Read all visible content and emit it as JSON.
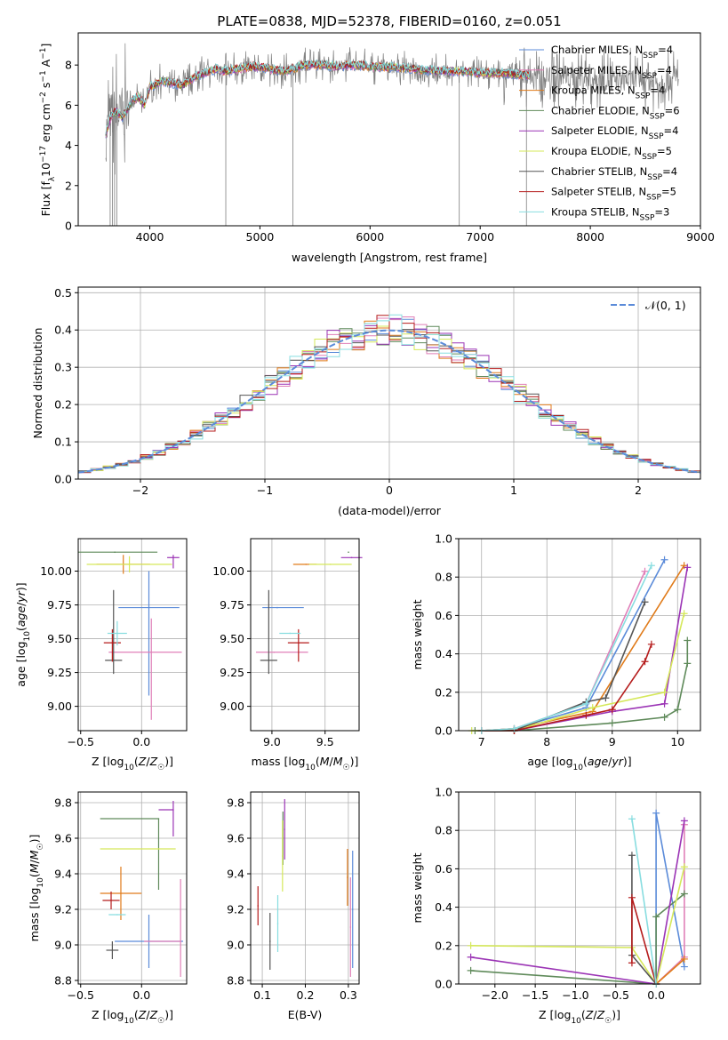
{
  "figure": {
    "title": "PLATE=0838, MJD=52378, FIBERID=0160, z=0.051"
  },
  "colors": {
    "Chabrier MILES": "#5b8bd9",
    "Salpeter MILES": "#e07fb8",
    "Kroupa MILES": "#e07b1a",
    "Chabrier ELODIE": "#5f8a5a",
    "Salpeter ELODIE": "#9b34b5",
    "Kroupa ELODIE": "#d5e85a",
    "Chabrier STELIB": "#555555",
    "Salpeter STELIB": "#b51c1c",
    "Kroupa STELIB": "#88dde0",
    "data": "#7f7f7f",
    "gaussian": "#5b8bd9"
  },
  "chart_data": [
    {
      "id": "spectrum",
      "type": "line",
      "title": "PLATE=0838, MJD=52378, FIBERID=0160, z=0.051",
      "xlabel": "wavelength [Angstrom, rest frame]",
      "ylabel": "Flux [f_λ 10^-17 erg cm^-2 s^-1 A^-1]",
      "xlim": [
        3350,
        9000
      ],
      "ylim": [
        0,
        9.6
      ],
      "xticks": [
        "4000",
        "5000",
        "6000",
        "7000",
        "8000",
        "9000"
      ],
      "yticks": [
        "0",
        "2",
        "4",
        "6",
        "8"
      ],
      "legend_position": "right",
      "legend": [
        {
          "label": "Chabrier MILES, N",
          "sub": "SSP",
          "tail": "=4"
        },
        {
          "label": "Salpeter MILES, N",
          "sub": "SSP",
          "tail": "=4"
        },
        {
          "label": "Kroupa MILES, N",
          "sub": "SSP",
          "tail": "=4"
        },
        {
          "label": "Chabrier ELODIE, N",
          "sub": "SSP",
          "tail": "=6"
        },
        {
          "label": "Salpeter ELODIE, N",
          "sub": "SSP",
          "tail": "=4"
        },
        {
          "label": "Kroupa ELODIE, N",
          "sub": "SSP",
          "tail": "=5"
        },
        {
          "label": "Chabrier STELIB, N",
          "sub": "SSP",
          "tail": "=4"
        },
        {
          "label": "Salpeter STELIB, N",
          "sub": "SSP",
          "tail": "=5"
        },
        {
          "label": "Kroupa STELIB, N",
          "sub": "SSP",
          "tail": "=3"
        }
      ],
      "continuum": {
        "x": [
          3600,
          3650,
          3700,
          3750,
          3800,
          3850,
          3900,
          3950,
          4000,
          4100,
          4200,
          4300,
          4400,
          4500,
          4600,
          4700,
          4800,
          4900,
          5000,
          5100,
          5200,
          5300,
          5400,
          5500,
          5600,
          5700,
          5800,
          5900,
          6000,
          6200,
          6400,
          6600,
          6800,
          7000,
          7200,
          7400,
          7600,
          7800,
          8000,
          8200,
          8400,
          8600,
          8800
        ],
        "y": [
          4.6,
          5.5,
          5.7,
          5.4,
          5.8,
          6.3,
          6.4,
          6.0,
          6.9,
          7.2,
          7.1,
          7.0,
          7.4,
          7.6,
          7.8,
          7.7,
          7.8,
          7.9,
          7.9,
          7.8,
          7.7,
          7.8,
          8.0,
          8.0,
          8.0,
          7.9,
          8.0,
          8.0,
          7.9,
          7.9,
          7.8,
          7.7,
          7.7,
          7.6,
          7.6,
          7.5,
          7.4,
          7.4,
          7.3,
          7.2,
          7.3,
          7.2,
          7.3
        ]
      }
    },
    {
      "id": "residuals",
      "type": "bar",
      "xlabel": "(data-model)/error",
      "ylabel": "Normed distribution",
      "xlim": [
        -2.5,
        2.5
      ],
      "ylim": [
        0,
        0.515
      ],
      "xticks": [
        "−2",
        "−1",
        "0",
        "1",
        "2"
      ],
      "yticks": [
        "0.0",
        "0.1",
        "0.2",
        "0.3",
        "0.4",
        "0.5"
      ],
      "legend_position": "top-right",
      "legend_label": "𝒩(0, 1)",
      "bin_width": 0.1
    },
    {
      "id": "age-vs-Z",
      "type": "scatter",
      "xlabel": "Z [log10(Z/Z☉)]",
      "ylabel": "age  [log10(age/yr)]",
      "xlim": [
        -0.52,
        0.37
      ],
      "ylim": [
        8.82,
        10.24
      ],
      "xticks": [
        "−0.5",
        "0.0"
      ],
      "yticks": [
        "9.00",
        "9.25",
        "9.50",
        "9.75",
        "10.00"
      ],
      "points": [
        {
          "model": "Chabrier MILES",
          "x": 0.06,
          "xerr": [
            0.25,
            0.25
          ],
          "y": 9.73,
          "yerr": [
            0.65,
            0.27
          ]
        },
        {
          "model": "Salpeter MILES",
          "x": 0.08,
          "xerr": [
            0.35,
            0.25
          ],
          "y": 9.4,
          "yerr": [
            0.5,
            0.25
          ]
        },
        {
          "model": "Kroupa MILES",
          "x": -0.15,
          "xerr": [
            0.22,
            0.22
          ],
          "y": 10.05,
          "yerr": [
            0.07,
            0.07
          ]
        },
        {
          "model": "Chabrier ELODIE",
          "x": -0.22,
          "xerr": [
            0.3,
            0.35
          ],
          "y": 10.14,
          "yerr": [
            0.0,
            0.0
          ]
        },
        {
          "model": "Salpeter ELODIE",
          "x": 0.26,
          "xerr": [
            0.05,
            0.05
          ],
          "y": 10.1,
          "yerr": [
            0.08,
            0.02
          ]
        },
        {
          "model": "Kroupa ELODIE",
          "x": -0.1,
          "xerr": [
            0.35,
            0.35
          ],
          "y": 10.05,
          "yerr": [
            0.06,
            0.06
          ]
        },
        {
          "model": "Chabrier STELIB",
          "x": -0.23,
          "xerr": [
            0.07,
            0.07
          ],
          "y": 9.34,
          "yerr": [
            0.1,
            0.52
          ]
        },
        {
          "model": "Salpeter STELIB",
          "x": -0.24,
          "xerr": [
            0.07,
            0.07
          ],
          "y": 9.47,
          "yerr": [
            0.14,
            0.1
          ]
        },
        {
          "model": "Kroupa STELIB",
          "x": -0.2,
          "xerr": [
            0.08,
            0.08
          ],
          "y": 9.54,
          "yerr": [
            0.09,
            0.09
          ]
        }
      ]
    },
    {
      "id": "age-vs-mass",
      "type": "scatter",
      "xlabel": "mass [log10(M/M☉)]",
      "ylabel": "",
      "xlim": [
        8.8,
        9.82
      ],
      "ylim": [
        8.82,
        10.24
      ],
      "xticks": [
        "9.0",
        "9.5"
      ],
      "yticks": [
        "9.00",
        "9.25",
        "9.50",
        "9.75",
        "10.00"
      ],
      "points": [
        {
          "model": "Chabrier MILES",
          "x": 9.05,
          "xerr": [
            0.14,
            0.25
          ],
          "y": 9.73,
          "yerr": [
            0.0,
            0.0
          ]
        },
        {
          "model": "Salpeter MILES",
          "x": 9.02,
          "xerr": [
            0.17,
            0.32
          ],
          "y": 9.4,
          "yerr": [
            0.0,
            0.0
          ]
        },
        {
          "model": "Kroupa MILES",
          "x": 9.32,
          "xerr": [
            0.12,
            0.1
          ],
          "y": 10.05,
          "yerr": [
            0.0,
            0.0
          ]
        },
        {
          "model": "Chabrier ELODIE",
          "x": 9.72,
          "xerr": [
            0.0,
            0.0
          ],
          "y": 10.14,
          "yerr": [
            0.0,
            0.0
          ]
        },
        {
          "model": "Salpeter ELODIE",
          "x": 9.75,
          "xerr": [
            0.1,
            0.1
          ],
          "y": 10.1,
          "yerr": [
            0.0,
            0.0
          ]
        },
        {
          "model": "Kroupa ELODIE",
          "x": 9.55,
          "xerr": [
            0.2,
            0.2
          ],
          "y": 10.05,
          "yerr": [
            0.0,
            0.0
          ]
        },
        {
          "model": "Chabrier STELIB",
          "x": 8.97,
          "xerr": [
            0.08,
            0.08
          ],
          "y": 9.34,
          "yerr": [
            0.1,
            0.52
          ]
        },
        {
          "model": "Salpeter STELIB",
          "x": 9.25,
          "xerr": [
            0.1,
            0.1
          ],
          "y": 9.47,
          "yerr": [
            0.14,
            0.1
          ]
        },
        {
          "model": "Kroupa STELIB",
          "x": 9.17,
          "xerr": [
            0.1,
            0.1
          ],
          "y": 9.54,
          "yerr": [
            0.0,
            0.0
          ]
        }
      ]
    },
    {
      "id": "mass-weight-vs-age",
      "type": "line",
      "xlabel": "age  [log10(age/yr)]",
      "ylabel": "mass weight",
      "xlim": [
        6.65,
        10.35
      ],
      "ylim": [
        0.0,
        1.0
      ],
      "xticks": [
        "7",
        "8",
        "9",
        "10"
      ],
      "yticks": [
        "0.0",
        "0.2",
        "0.4",
        "0.6",
        "0.8",
        "1.0"
      ],
      "series": [
        {
          "model": "Chabrier MILES",
          "x": [
            7.0,
            7.5,
            8.6,
            9.8
          ],
          "y": [
            0.0,
            0.01,
            0.12,
            0.89
          ]
        },
        {
          "model": "Salpeter MILES",
          "x": [
            7.0,
            7.5,
            8.6,
            9.5
          ],
          "y": [
            0.0,
            0.01,
            0.14,
            0.83
          ]
        },
        {
          "model": "Kroupa MILES",
          "x": [
            7.0,
            7.5,
            8.7,
            10.1
          ],
          "y": [
            0.0,
            0.01,
            0.1,
            0.86
          ]
        },
        {
          "model": "Chabrier ELODIE",
          "x": [
            6.9,
            7.5,
            9.0,
            9.8,
            10.0,
            10.15,
            10.15
          ],
          "y": [
            0.0,
            0.0,
            0.04,
            0.07,
            0.11,
            0.35,
            0.47
          ]
        },
        {
          "model": "Salpeter ELODIE",
          "x": [
            7.0,
            7.5,
            9.0,
            9.8,
            10.15
          ],
          "y": [
            0.0,
            0.0,
            0.1,
            0.14,
            0.85
          ]
        },
        {
          "model": "Kroupa ELODIE",
          "x": [
            6.85,
            7.5,
            8.7,
            9.8,
            10.1
          ],
          "y": [
            0.0,
            0.0,
            0.12,
            0.2,
            0.61
          ]
        },
        {
          "model": "Chabrier STELIB",
          "x": [
            7.0,
            7.5,
            8.6,
            8.9,
            9.5
          ],
          "y": [
            0.0,
            0.0,
            0.15,
            0.17,
            0.67
          ]
        },
        {
          "model": "Salpeter STELIB",
          "x": [
            7.0,
            7.5,
            8.6,
            9.0,
            9.5,
            9.6
          ],
          "y": [
            0.0,
            0.0,
            0.08,
            0.11,
            0.36,
            0.45
          ]
        },
        {
          "model": "Kroupa STELIB",
          "x": [
            7.0,
            7.5,
            8.6,
            9.6
          ],
          "y": [
            0.0,
            0.01,
            0.14,
            0.86
          ]
        }
      ]
    },
    {
      "id": "mass-vs-Z",
      "type": "scatter",
      "xlabel": "Z [log10(Z/Z☉)]",
      "ylabel": "mass [log10(M/M☉)]",
      "xlim": [
        -0.52,
        0.37
      ],
      "ylim": [
        8.78,
        9.86
      ],
      "xticks": [
        "−0.5",
        "0.0"
      ],
      "yticks": [
        "8.8",
        "9.0",
        "9.2",
        "9.4",
        "9.6",
        "9.8"
      ],
      "points": [
        {
          "model": "Chabrier MILES",
          "x": 0.06,
          "xerr": [
            0.28,
            0.28
          ],
          "y": 9.02,
          "yerr": [
            0.15,
            0.15
          ]
        },
        {
          "model": "Salpeter MILES",
          "x": 0.32,
          "xerr": [
            0.3,
            0.0
          ],
          "y": 9.02,
          "yerr": [
            0.2,
            0.35
          ]
        },
        {
          "model": "Kroupa MILES",
          "x": -0.17,
          "xerr": [
            0.17,
            0.17
          ],
          "y": 9.29,
          "yerr": [
            0.15,
            0.15
          ]
        },
        {
          "model": "Chabrier ELODIE",
          "x": 0.14,
          "xerr": [
            0.48,
            0.0
          ],
          "y": 9.71,
          "yerr": [
            0.4,
            0.0
          ]
        },
        {
          "model": "Salpeter ELODIE",
          "x": 0.26,
          "xerr": [
            0.12,
            0.0
          ],
          "y": 9.76,
          "yerr": [
            0.15,
            0.05
          ]
        },
        {
          "model": "Kroupa ELODIE",
          "x": 0.14,
          "xerr": [
            0.48,
            0.14
          ],
          "y": 9.54,
          "yerr": [
            0.0,
            0.0
          ]
        },
        {
          "model": "Chabrier STELIB",
          "x": -0.24,
          "xerr": [
            0.05,
            0.05
          ],
          "y": 8.97,
          "yerr": [
            0.05,
            0.05
          ]
        },
        {
          "model": "Salpeter STELIB",
          "x": -0.25,
          "xerr": [
            0.07,
            0.07
          ],
          "y": 9.25,
          "yerr": [
            0.05,
            0.05
          ]
        },
        {
          "model": "Kroupa STELIB",
          "x": -0.2,
          "xerr": [
            0.07,
            0.07
          ],
          "y": 9.17,
          "yerr": [
            0.0,
            0.0
          ]
        }
      ]
    },
    {
      "id": "mass-vs-ebv",
      "type": "scatter",
      "xlabel": "E(B-V)",
      "ylabel": "",
      "xlim": [
        0.073,
        0.325
      ],
      "ylim": [
        8.78,
        9.86
      ],
      "xticks": [
        "0.1",
        "0.2",
        "0.3"
      ],
      "yticks": [
        "8.8",
        "9.0",
        "9.2",
        "9.4",
        "9.6",
        "9.8"
      ],
      "points": [
        {
          "model": "Chabrier MILES",
          "x": 0.31,
          "y": 9.2,
          "yerr": [
            0.33,
            0.33
          ]
        },
        {
          "model": "Salpeter MILES",
          "x": 0.305,
          "y": 9.1,
          "yerr": [
            0.28,
            0.28
          ]
        },
        {
          "model": "Kroupa MILES",
          "x": 0.298,
          "y": 9.38,
          "yerr": [
            0.16,
            0.16
          ]
        },
        {
          "model": "Chabrier ELODIE",
          "x": 0.148,
          "y": 9.6,
          "yerr": [
            0.15,
            0.15
          ]
        },
        {
          "model": "Salpeter ELODIE",
          "x": 0.152,
          "y": 9.65,
          "yerr": [
            0.17,
            0.17
          ]
        },
        {
          "model": "Kroupa ELODIE",
          "x": 0.147,
          "y": 9.5,
          "yerr": [
            0.2,
            0.2
          ]
        },
        {
          "model": "Chabrier STELIB",
          "x": 0.118,
          "y": 9.02,
          "yerr": [
            0.16,
            0.16
          ]
        },
        {
          "model": "Salpeter STELIB",
          "x": 0.09,
          "y": 9.22,
          "yerr": [
            0.11,
            0.11
          ]
        },
        {
          "model": "Kroupa STELIB",
          "x": 0.136,
          "y": 9.12,
          "yerr": [
            0.16,
            0.16
          ]
        }
      ]
    },
    {
      "id": "mass-weight-vs-Z",
      "type": "line",
      "xlabel": "Z [log10(Z/Z☉)]",
      "ylabel": "mass weight",
      "xlim": [
        -2.45,
        0.55
      ],
      "ylim": [
        0.0,
        1.0
      ],
      "xticks": [
        "−2.0",
        "−1.5",
        "−1.0",
        "−0.5",
        "0.0"
      ],
      "yticks": [
        "0.0",
        "0.2",
        "0.4",
        "0.6",
        "0.8",
        "1.0"
      ],
      "series": [
        {
          "model": "Chabrier MILES",
          "x": [
            0.0,
            0.0,
            0.35
          ],
          "y": [
            0.0,
            0.89,
            0.09
          ]
        },
        {
          "model": "Salpeter MILES",
          "x": [
            0.0,
            0.35,
            0.35
          ],
          "y": [
            0.0,
            0.14,
            0.83
          ]
        },
        {
          "model": "Kroupa MILES",
          "x": [
            0.0,
            0.35
          ],
          "y": [
            0.0,
            0.13
          ]
        },
        {
          "model": "Chabrier ELODIE",
          "x": [
            -2.3,
            0.0,
            0.0,
            0.35
          ],
          "y": [
            0.07,
            0.0,
            0.35,
            0.47
          ]
        },
        {
          "model": "Salpeter ELODIE",
          "x": [
            -2.3,
            0.0,
            0.35
          ],
          "y": [
            0.14,
            0.0,
            0.85
          ]
        },
        {
          "model": "Kroupa ELODIE",
          "x": [
            -2.3,
            -0.3,
            0.0,
            0.35
          ],
          "y": [
            0.2,
            0.19,
            0.0,
            0.61
          ]
        },
        {
          "model": "Chabrier STELIB",
          "x": [
            -0.3,
            -0.3,
            0.0
          ],
          "y": [
            0.67,
            0.15,
            0.0
          ]
        },
        {
          "model": "Salpeter STELIB",
          "x": [
            -0.3,
            -0.3,
            0.0
          ],
          "y": [
            0.11,
            0.45,
            0.0
          ]
        },
        {
          "model": "Kroupa STELIB",
          "x": [
            -0.3,
            0.0
          ],
          "y": [
            0.86,
            0.0
          ]
        }
      ]
    }
  ]
}
